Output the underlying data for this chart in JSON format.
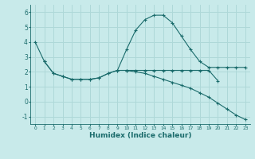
{
  "title": "",
  "xlabel": "Humidex (Indice chaleur)",
  "xlim": [
    -0.5,
    23.5
  ],
  "ylim": [
    -1.5,
    6.5
  ],
  "yticks": [
    -1,
    0,
    1,
    2,
    3,
    4,
    5,
    6
  ],
  "xticks": [
    0,
    1,
    2,
    3,
    4,
    5,
    6,
    7,
    8,
    9,
    10,
    11,
    12,
    13,
    14,
    15,
    16,
    17,
    18,
    19,
    20,
    21,
    22,
    23
  ],
  "bg_color": "#c8eaea",
  "line_color": "#1a6b6b",
  "grid_color": "#aed8d8",
  "lines": [
    {
      "x": [
        0,
        1,
        2,
        3,
        4,
        5,
        6,
        7,
        8,
        9,
        10,
        11,
        12,
        13,
        14,
        15,
        16,
        17,
        18,
        19,
        20,
        21,
        22,
        23
      ],
      "y": [
        4.0,
        2.7,
        1.9,
        1.7,
        1.5,
        1.5,
        1.5,
        1.6,
        1.9,
        2.1,
        3.5,
        4.8,
        5.5,
        5.8,
        5.8,
        5.3,
        4.4,
        3.5,
        2.7,
        2.3,
        2.3,
        2.3,
        2.3,
        2.3
      ]
    },
    {
      "x": [
        1,
        2,
        3,
        4,
        5,
        6,
        7,
        8,
        9,
        10,
        11,
        12,
        13,
        14,
        15,
        16,
        17,
        18,
        19,
        20
      ],
      "y": [
        2.7,
        1.9,
        1.7,
        1.5,
        1.5,
        1.5,
        1.6,
        1.9,
        2.1,
        2.1,
        2.1,
        2.1,
        2.1,
        2.1,
        2.1,
        2.1,
        2.1,
        2.1,
        2.1,
        1.4
      ]
    },
    {
      "x": [
        10,
        11,
        12,
        13,
        14,
        15,
        16,
        17,
        18,
        19,
        20,
        21,
        22,
        23
      ],
      "y": [
        2.1,
        2.0,
        1.9,
        1.7,
        1.5,
        1.3,
        1.1,
        0.9,
        0.6,
        0.3,
        -0.1,
        -0.5,
        -0.9,
        -1.2
      ]
    }
  ]
}
